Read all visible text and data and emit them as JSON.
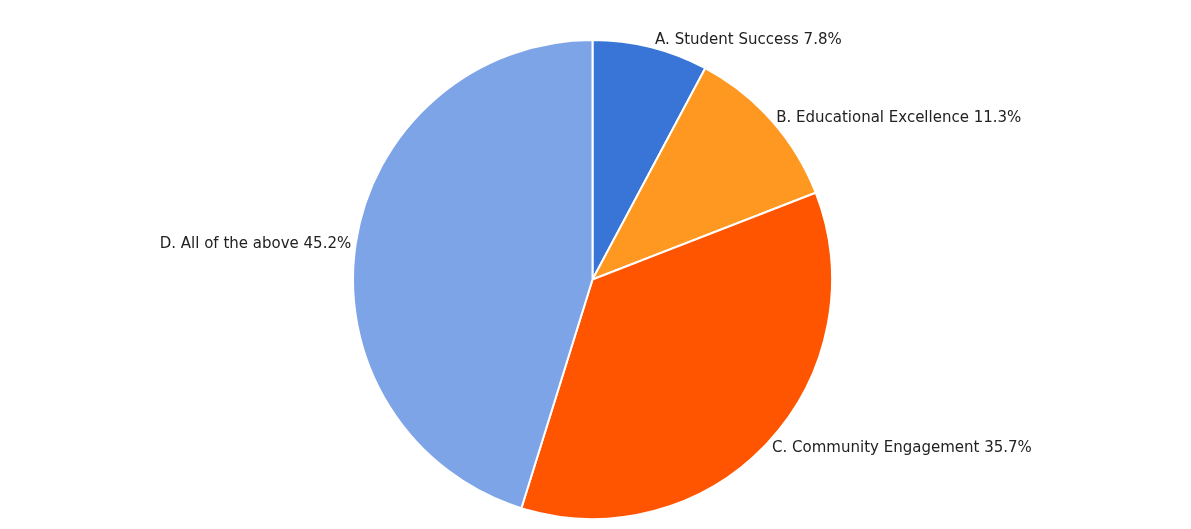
{
  "chart_data": {
    "type": "pie",
    "categories": [
      "A. Student Success",
      "B. Educational Excellence",
      "C. Community Engagement",
      "D. All of the above"
    ],
    "values": [
      7.8,
      11.3,
      35.7,
      45.2
    ],
    "value_labels": [
      "7.8%",
      "11.3%",
      "35.7%",
      "45.2%"
    ],
    "colors": [
      "#3875d7",
      "#ff9820",
      "#ff5500",
      "#7ea4e8"
    ],
    "legend": false
  }
}
